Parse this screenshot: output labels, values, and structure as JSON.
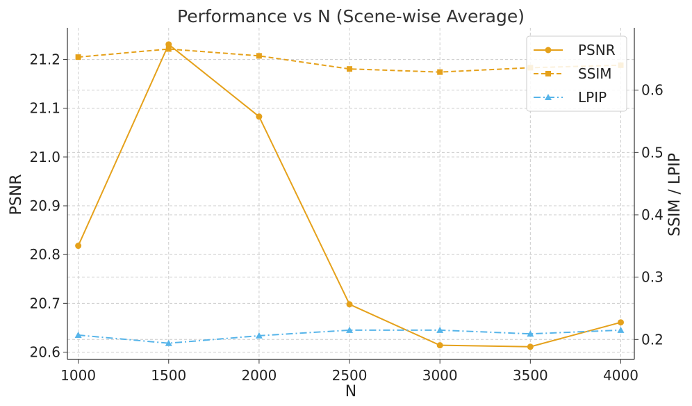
{
  "chart_data": {
    "type": "line",
    "title": "Performance vs N (Scene-wise Average)",
    "xlabel": "N",
    "ylabel_left": "PSNR",
    "ylabel_right": "SSIM / LPIP",
    "x": [
      1000,
      1500,
      2000,
      2500,
      3000,
      3500,
      4000
    ],
    "xticks": [
      "1000",
      "1500",
      "2000",
      "2500",
      "3000",
      "3500",
      "4000"
    ],
    "ylim_left": [
      20.585,
      21.265
    ],
    "yticks_left": [
      "20.6",
      "20.7",
      "20.8",
      "20.9",
      "21.0",
      "21.1",
      "21.2"
    ],
    "ylim_right": [
      0.168,
      0.7
    ],
    "yticks_right": [
      "0.2",
      "0.3",
      "0.4",
      "0.5",
      "0.6"
    ],
    "grid": true,
    "legend_position": "top-right",
    "series": [
      {
        "name": "PSNR",
        "axis": "left",
        "color": "#e5a11b",
        "style": "solid",
        "marker": "circle",
        "values": [
          20.818,
          21.231,
          21.083,
          20.698,
          20.614,
          20.611,
          20.661
        ]
      },
      {
        "name": "SSIM",
        "axis": "right",
        "color": "#e5a11b",
        "style": "dashed",
        "marker": "square",
        "values": [
          0.653,
          0.666,
          0.655,
          0.634,
          0.629,
          0.636,
          0.64
        ]
      },
      {
        "name": "LPIP",
        "axis": "right",
        "color": "#56b4e9",
        "style": "dashdot",
        "marker": "triangle",
        "values": [
          0.207,
          0.194,
          0.206,
          0.215,
          0.215,
          0.209,
          0.215
        ]
      }
    ]
  }
}
